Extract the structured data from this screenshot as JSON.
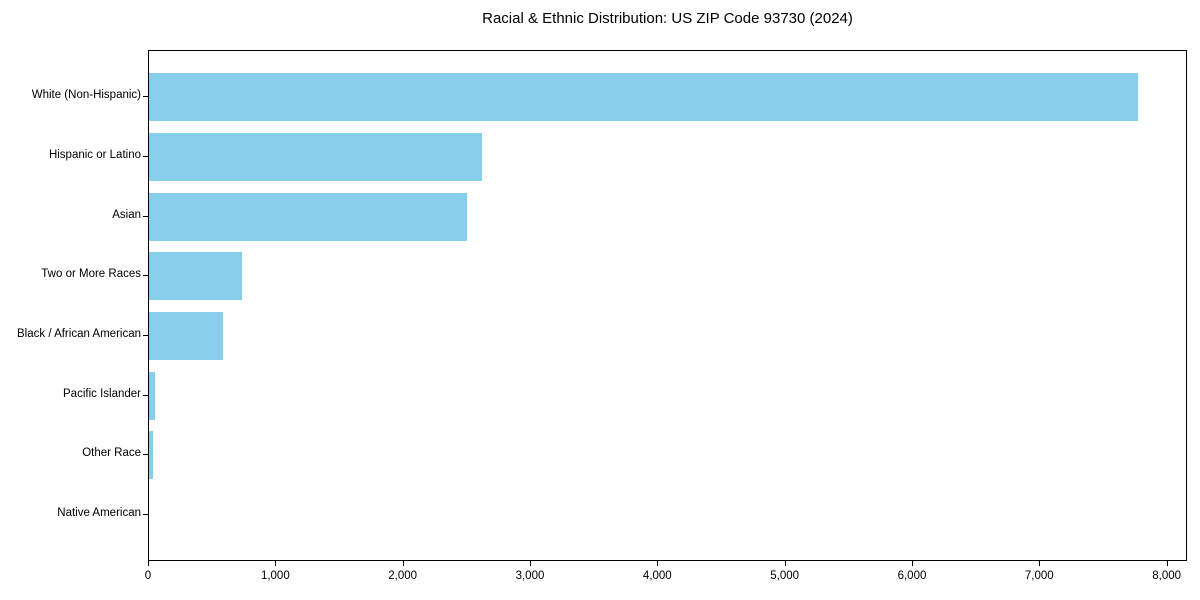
{
  "chart_data": {
    "type": "bar",
    "orientation": "horizontal",
    "title": "Racial & Ethnic Distribution: US ZIP Code 93730 (2024)",
    "categories": [
      "White (Non-Hispanic)",
      "Hispanic or Latino",
      "Asian",
      "Two or More Races",
      "Black / African American",
      "Pacific Islander",
      "Other Race",
      "Native American"
    ],
    "values": [
      7770,
      2615,
      2500,
      730,
      585,
      45,
      30,
      0
    ],
    "xlabel": "",
    "ylabel": "",
    "xlim": [
      0,
      8160
    ],
    "x_ticks": [
      0,
      1000,
      2000,
      3000,
      4000,
      5000,
      6000,
      7000,
      8000
    ],
    "x_tick_labels": [
      "0",
      "1,000",
      "2,000",
      "3,000",
      "4,000",
      "5,000",
      "6,000",
      "7,000",
      "8,000"
    ],
    "grid": false,
    "legend": "none",
    "bar_color": "#87CEEB",
    "axis_color": "#000000",
    "text_color": "#000000",
    "background_color": "#ffffff"
  }
}
